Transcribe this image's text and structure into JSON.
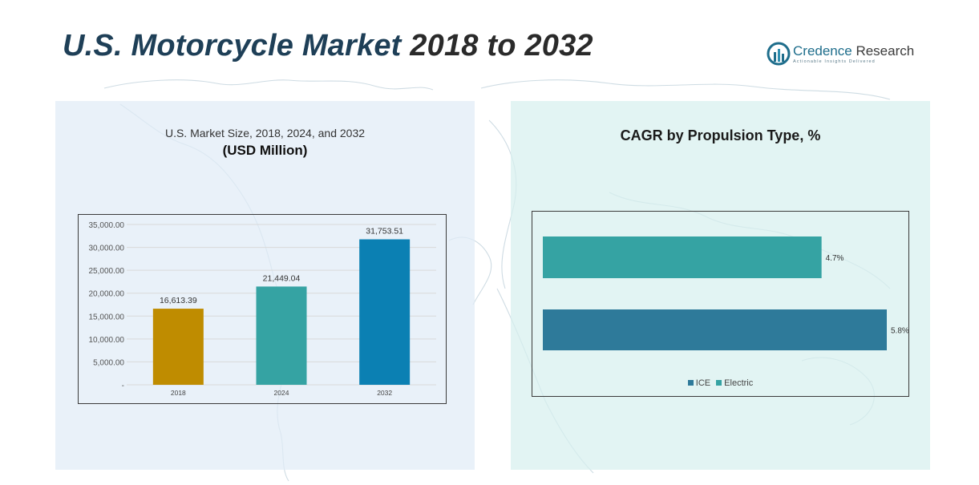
{
  "title": {
    "part1": "U.S. Motorcycle Market",
    "part2": "2018 to 2032"
  },
  "logo": {
    "brand": "Credence",
    "brand2": "Research",
    "tagline": "Actionable Insights Delivered"
  },
  "left_panel": {
    "subtitle": "U.S. Market Size, 2018, 2024, and 2032",
    "unit": "(USD Million)"
  },
  "right_panel": {
    "title": "CAGR by Propulsion Type, %"
  },
  "colors": {
    "bar_2018": "#bf8c00",
    "bar_2024": "#35a3a3",
    "bar_2032": "#0b80b3",
    "ice": "#2e7a9a",
    "electric": "#35a3a3"
  },
  "chart_data": [
    {
      "type": "bar",
      "title": "U.S. Market Size, 2018, 2024, and 2032",
      "subtitle": "(USD Million)",
      "categories": [
        "2018",
        "2024",
        "2032"
      ],
      "values": [
        16613.39,
        21449.04,
        31753.51
      ],
      "value_labels": [
        "16,613.39",
        "21,449.04",
        "31,753.51"
      ],
      "ylim": [
        0,
        35000
      ],
      "yticks": [
        0,
        5000,
        10000,
        15000,
        20000,
        25000,
        30000,
        35000
      ],
      "ytick_labels": [
        "-",
        "5,000.00",
        "10,000.00",
        "15,000.00",
        "20,000.00",
        "25,000.00",
        "30,000.00",
        "35,000.00"
      ],
      "grid": true
    },
    {
      "type": "bar",
      "orientation": "horizontal",
      "title": "CAGR by Propulsion Type, %",
      "series": [
        {
          "name": "Electric",
          "value": 4.7,
          "label": "4.7%"
        },
        {
          "name": "ICE",
          "value": 5.8,
          "label": "5.8%"
        }
      ],
      "legend": [
        "ICE",
        "Electric"
      ],
      "legend_position": "bottom",
      "xlim": [
        0,
        5.8
      ]
    }
  ]
}
